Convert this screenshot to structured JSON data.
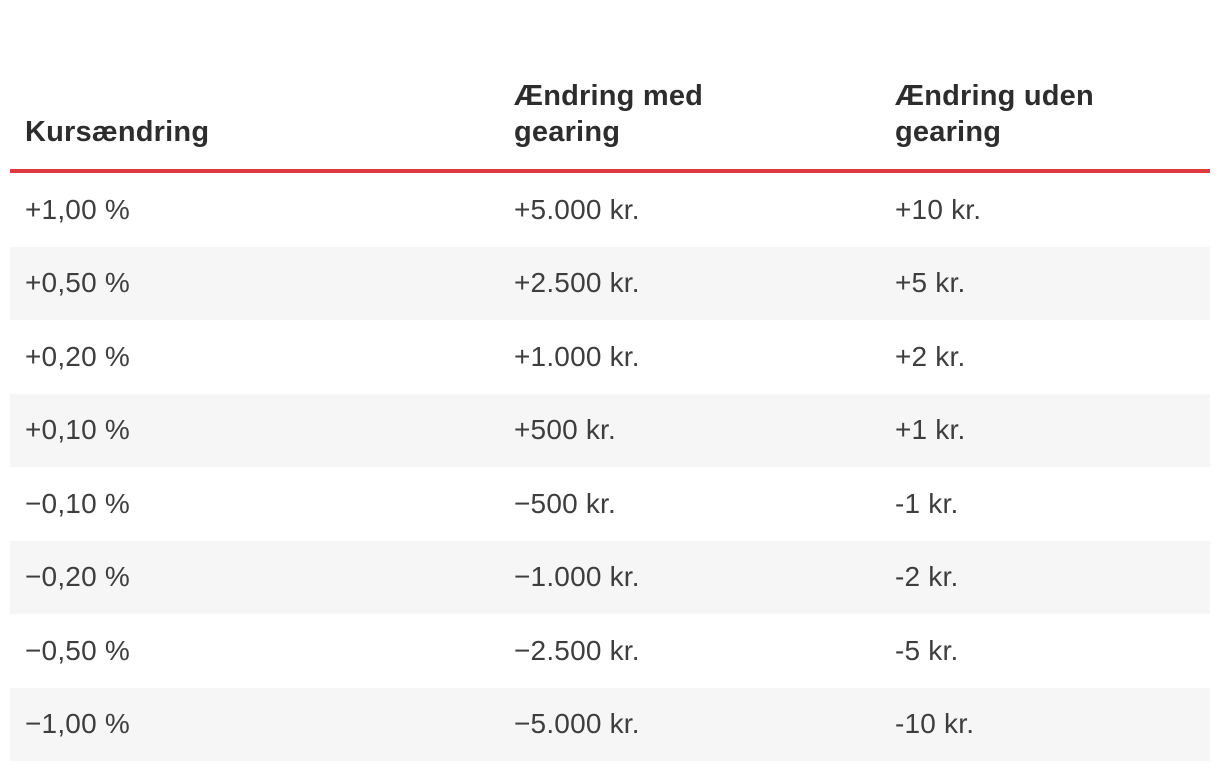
{
  "table": {
    "columns": [
      {
        "label": "Kursændring"
      },
      {
        "label": "Ændring med gearing"
      },
      {
        "label": "Ændring uden gearing"
      }
    ],
    "rows": [
      [
        "+1,00 %",
        "+5.000 kr.",
        "+10 kr."
      ],
      [
        "+0,50 %",
        "+2.500 kr.",
        "+5 kr."
      ],
      [
        "+0,20 %",
        "+1.000 kr.",
        "+2 kr."
      ],
      [
        "+0,10 %",
        "+500 kr.",
        "+1 kr."
      ],
      [
        "−0,10 %",
        "−500 kr.",
        "-1 kr."
      ],
      [
        "−0,20 %",
        "−1.000 kr.",
        "-2 kr."
      ],
      [
        "−0,50 %",
        "−2.500 kr.",
        "-5 kr."
      ],
      [
        "−1,00 %",
        "−5.000 kr.",
        "-10 kr."
      ]
    ],
    "colors": {
      "accent_red": "#dd393e",
      "row_alt_bg": "#f6f6f6",
      "header_text": "#2d2d2d",
      "body_text": "#3e3e3e"
    }
  }
}
